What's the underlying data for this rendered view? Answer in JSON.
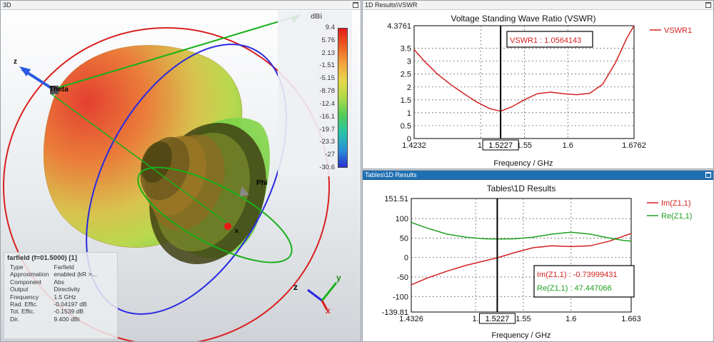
{
  "windows": {
    "farfield_3d": {
      "title": "3D",
      "colorbar": {
        "unit": "dBi",
        "ticks": [
          "9.4",
          "5.76",
          "2.13",
          "-1.51",
          "-5.15",
          "-8.78",
          "-12.4",
          "-16.1",
          "-19.7",
          "-23.3",
          "-27",
          "-30.6"
        ]
      },
      "axis_labels": {
        "theta": "Theta",
        "phi": "Phi",
        "z": "z",
        "x": "x"
      },
      "triad": {
        "z": "z",
        "y": "y",
        "x": "x"
      },
      "info": {
        "header": "farfield (f=01.5000) [1]",
        "rows": [
          {
            "key": "Type",
            "value": "Farfield"
          },
          {
            "key": "Approximation",
            "value": "enabled (kR >..."
          },
          {
            "key": "Component",
            "value": "Abs"
          },
          {
            "key": "Output",
            "value": "Directivity"
          },
          {
            "key": "Frequency",
            "value": "1.5 GHz"
          },
          {
            "key": "Rad. Effic.",
            "value": "-0.04197 dB"
          },
          {
            "key": "Tot. Effic.",
            "value": "-0.1539 dB"
          },
          {
            "key": "Dir.",
            "value": "9.400 dBi"
          }
        ]
      }
    },
    "vswr": {
      "title": "1D Results\\VSWR",
      "plot_title": "Voltage Standing Wave Ratio (VSWR)",
      "xlabel": "Frequency / GHz",
      "marker_x_label": "1.5227",
      "marker_box": "VSWR1 : 1.0564143",
      "legend": [
        {
          "name": "VSWR1",
          "color": "#d42020"
        }
      ]
    },
    "tables": {
      "title": "Tables\\1D Results",
      "plot_title": "Tables\\1D Results",
      "xlabel": "Frequency / GHz",
      "marker_x_label": "1.5227",
      "marker_box": [
        {
          "text": "Im(Z1,1) : -0.73999431",
          "color": "#d42020"
        },
        {
          "text": "Re(Z1,1) : 47.447066",
          "color": "#1fa01f"
        }
      ],
      "legend": [
        {
          "name": "Im(Z1,1)",
          "color": "#d42020"
        },
        {
          "name": "Re(Z1,1)",
          "color": "#1fa01f"
        }
      ]
    }
  },
  "chart_data": [
    {
      "type": "line",
      "title": "Voltage Standing Wave Ratio (VSWR)",
      "xlabel": "Frequency / GHz",
      "ylabel": "",
      "xlim": [
        1.4232,
        1.6762
      ],
      "ylim": [
        0,
        4.3761
      ],
      "x_tick_labels": [
        "1.4232",
        "1.",
        "1.55",
        "1.6",
        "1.6762"
      ],
      "x_tick_values": [
        1.4232,
        1.5,
        1.55,
        1.6,
        1.6762
      ],
      "y_tick_labels": [
        "0",
        "0.5",
        "1",
        "1.5",
        "2",
        "2.5",
        "3",
        "3.5",
        "4.3761"
      ],
      "y_tick_values": [
        0,
        0.5,
        1,
        1.5,
        2,
        2.5,
        3,
        3.5,
        4.3761
      ],
      "grid": true,
      "legend_position": "right",
      "marker": {
        "x": 1.5227,
        "y": 1.0564143
      },
      "series": [
        {
          "name": "VSWR1",
          "color": "#d42020",
          "x": [
            1.4232,
            1.435,
            1.45,
            1.465,
            1.48,
            1.495,
            1.51,
            1.5227,
            1.535,
            1.55,
            1.565,
            1.58,
            1.595,
            1.61,
            1.625,
            1.64,
            1.655,
            1.668,
            1.6762
          ],
          "y": [
            3.45,
            3.0,
            2.5,
            2.1,
            1.75,
            1.42,
            1.16,
            1.06,
            1.22,
            1.5,
            1.74,
            1.8,
            1.74,
            1.7,
            1.75,
            2.1,
            2.95,
            3.9,
            4.3761
          ]
        }
      ]
    },
    {
      "type": "line",
      "title": "Tables\\1D Results",
      "xlabel": "Frequency / GHz",
      "ylabel": "",
      "xlim": [
        1.4326,
        1.663
      ],
      "ylim": [
        -139.81,
        151.51
      ],
      "x_tick_labels": [
        "1.4326",
        "1.",
        "1.55",
        "1.6",
        "1.663"
      ],
      "x_tick_values": [
        1.4326,
        1.5,
        1.55,
        1.6,
        1.663
      ],
      "y_tick_labels": [
        "-139.81",
        "-100",
        "-50",
        "0",
        "50",
        "100",
        "151.51"
      ],
      "y_tick_values": [
        -139.81,
        -100,
        -50,
        0,
        50,
        100,
        151.51
      ],
      "grid": true,
      "legend_position": "right",
      "marker": {
        "x": 1.5227
      },
      "series": [
        {
          "name": "Im(Z1,1)",
          "color": "#d42020",
          "x": [
            1.4326,
            1.45,
            1.47,
            1.49,
            1.51,
            1.5227,
            1.54,
            1.56,
            1.58,
            1.6,
            1.62,
            1.64,
            1.655,
            1.663
          ],
          "y": [
            -70,
            -52,
            -35,
            -20,
            -8,
            -0.74,
            12,
            25,
            30,
            28,
            30,
            42,
            55,
            62
          ]
        },
        {
          "name": "Re(Z1,1)",
          "color": "#1fa01f",
          "x": [
            1.4326,
            1.45,
            1.47,
            1.49,
            1.51,
            1.5227,
            1.54,
            1.56,
            1.58,
            1.6,
            1.62,
            1.64,
            1.655,
            1.663
          ],
          "y": [
            90,
            75,
            60,
            52,
            48,
            47.45,
            48,
            52,
            60,
            65,
            60,
            50,
            44,
            42
          ]
        }
      ]
    }
  ]
}
